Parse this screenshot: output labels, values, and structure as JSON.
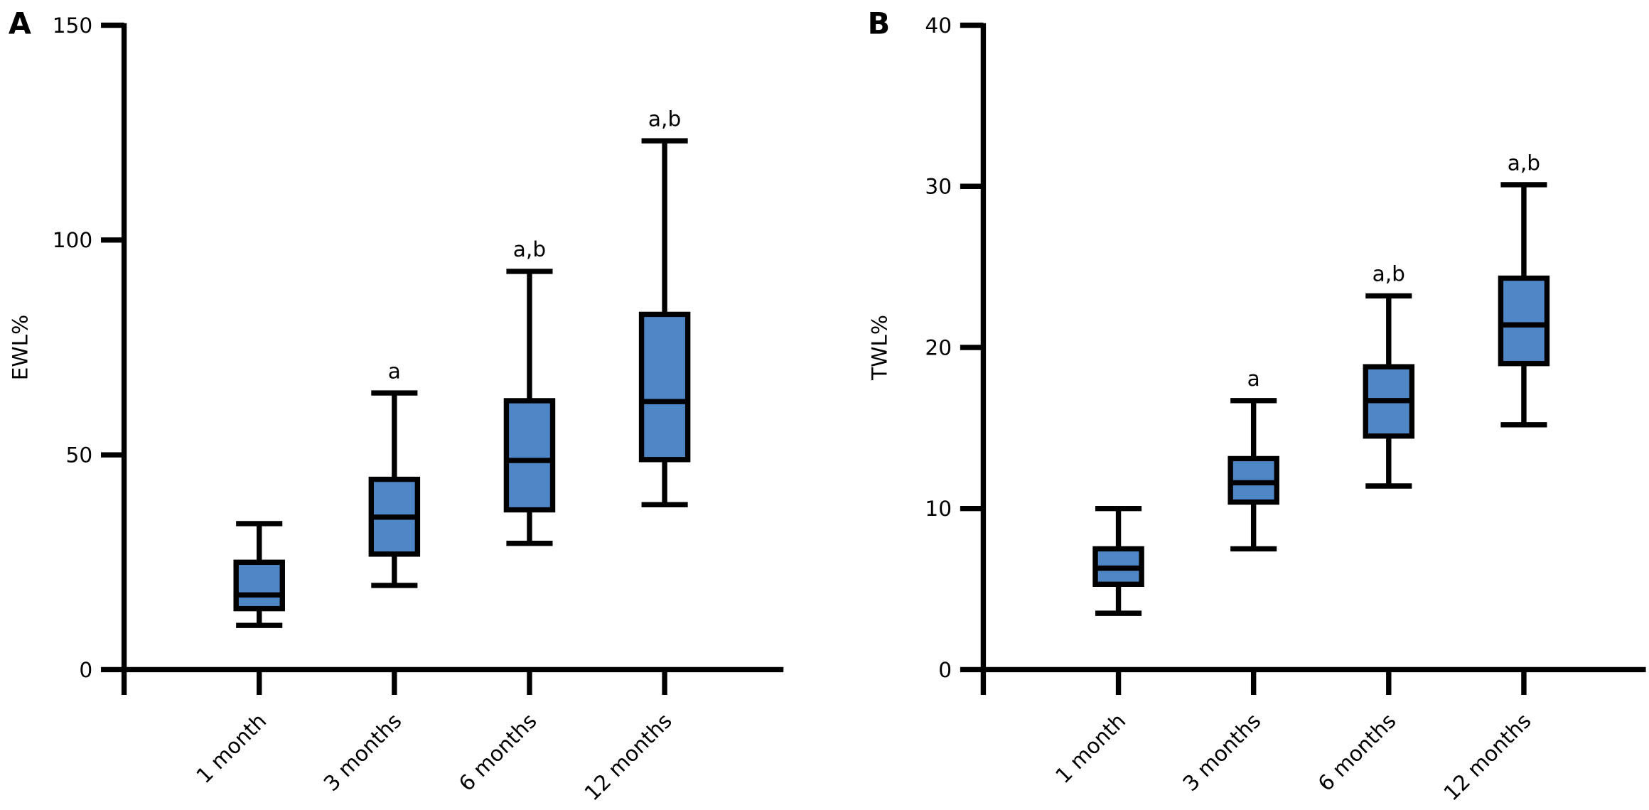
{
  "chart_data": [
    {
      "type": "box",
      "panel": "A",
      "y_label": "EWL%",
      "color": "#4f86c6",
      "categories": [
        "1 month",
        "3 months",
        "6 months",
        "12 months"
      ],
      "whisker_low": [
        10.3,
        19.6,
        29.4,
        38.4
      ],
      "q1": [
        14.2,
        26.9,
        37.2,
        48.9
      ],
      "median": [
        17.4,
        35.5,
        48.7,
        62.4
      ],
      "q3": [
        25,
        44.3,
        62.6,
        82.7
      ],
      "whisker_high": [
        34,
        64.4,
        92.7,
        123.1
      ],
      "annotations": [
        null,
        "a",
        "a,b",
        "a,b"
      ],
      "ylim": [
        0,
        150
      ],
      "yticks": [
        0,
        50,
        100,
        150
      ]
    },
    {
      "type": "box",
      "panel": "B",
      "y_label": "TWL%",
      "color": "#4f86c6",
      "categories": [
        "1 month",
        "3 months",
        "6 months",
        "12 months"
      ],
      "whisker_low": [
        3.5,
        7.5,
        11.4,
        15.2
      ],
      "q1": [
        5.3,
        10.4,
        14.5,
        19
      ],
      "median": [
        6.3,
        11.6,
        16.7,
        21.4
      ],
      "q3": [
        7.5,
        13.1,
        18.8,
        24.3
      ],
      "whisker_high": [
        10,
        16.7,
        23.2,
        30.1
      ],
      "annotations": [
        null,
        "a",
        "a,b",
        "a,b"
      ],
      "ylim": [
        0,
        40
      ],
      "yticks": [
        0,
        10,
        20,
        30,
        40
      ]
    }
  ]
}
